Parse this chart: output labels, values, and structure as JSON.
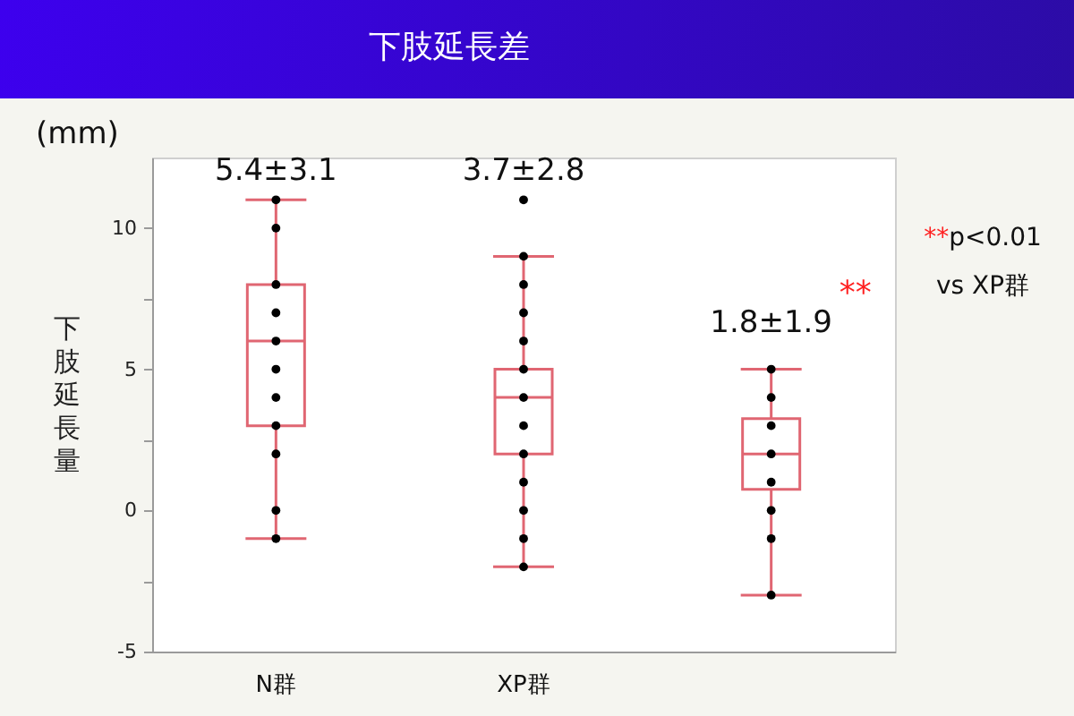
{
  "chart_data": {
    "type": "box",
    "title": "下肢延長差",
    "ylabel": "下肢延長量",
    "categories": [
      "N群",
      "XP群",
      null
    ],
    "ylim": [
      -5,
      12.5
    ],
    "yticks": [
      -5,
      {
        "value": -2.5,
        "label": null
      },
      0,
      {
        "value": 2.5,
        "label": null
      },
      5,
      {
        "value": 7.5,
        "label": null
      },
      10
    ],
    "series": [
      {
        "color": "#e06672",
        "boxes": [
          {
            "low": -1,
            "q1": 3,
            "median": 6,
            "q3": 8,
            "high": 11
          },
          {
            "low": -2,
            "q1": 2,
            "median": 4,
            "q3": 5,
            "high": 9
          },
          {
            "low": -3,
            "q1": 0.75,
            "median": 2,
            "q3": 3.25,
            "high": 5
          }
        ]
      },
      {
        "type": "scatter",
        "color": "#000000",
        "marker": "circle",
        "x": [
          "N群",
          "N群",
          "N群",
          "N群",
          "N群",
          "N群",
          "N群",
          "N群",
          "N群",
          "N群",
          "N群",
          "XP群",
          "XP群",
          "XP群",
          "XP群",
          "XP群",
          "XP群",
          "XP群",
          "XP群",
          "XP群",
          "XP群",
          "XP群",
          "XP群",
          "XP群",
          null,
          null,
          null,
          null,
          null,
          null,
          null,
          null
        ],
        "values": [
          11,
          10,
          8,
          7,
          6,
          5,
          4,
          3,
          2,
          0,
          -1,
          11,
          9,
          8,
          7,
          6,
          5,
          4,
          3,
          2,
          1,
          0,
          -1,
          -2,
          5,
          4,
          3,
          2,
          1,
          0,
          -1,
          -3
        ]
      }
    ],
    "annotations": [
      "5.4±3.1",
      "3.7±2.8",
      "1.8±1.9",
      "**",
      "(mm)",
      "**p<0.01",
      "vs XP群"
    ]
  }
}
